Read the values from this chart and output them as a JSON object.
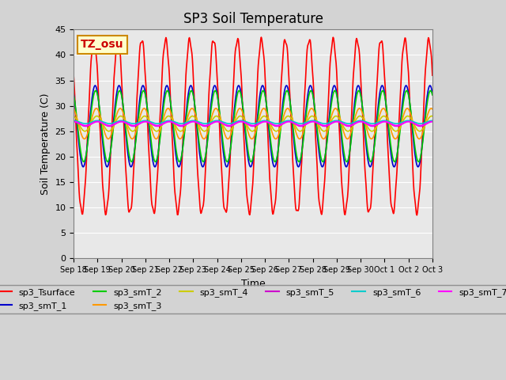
{
  "title": "SP3 Soil Temperature",
  "ylabel": "Soil Temperature (C)",
  "xlabel": "Time",
  "annotation": "TZ_osu",
  "ylim": [
    0,
    45
  ],
  "background_color": "#d3d3d3",
  "plot_bg_color": "#e8e8e8",
  "series_colors": {
    "sp3_Tsurface": "#ff0000",
    "sp3_smT_1": "#0000cc",
    "sp3_smT_2": "#00cc00",
    "sp3_smT_3": "#ff9900",
    "sp3_smT_4": "#cccc00",
    "sp3_smT_5": "#cc00cc",
    "sp3_smT_6": "#00cccc",
    "sp3_smT_7": "#ff00ff"
  },
  "x_tick_labels": [
    "Sep 18",
    "Sep 19",
    "Sep 20",
    "Sep 21",
    "Sep 22",
    "Sep 23",
    "Sep 24",
    "Sep 25",
    "Sep 26",
    "Sep 27",
    "Sep 28",
    "Sep 29",
    "Sep 30",
    "Oct 1",
    "Oct 2",
    "Oct 3"
  ],
  "num_days": 15,
  "num_points": 720,
  "surface_base": 26,
  "surface_amp": 17,
  "surface_phase": 0.6,
  "smT1_base": 26,
  "smT1_amp": 8,
  "smT1_phase": 0.65,
  "smT2_base": 26,
  "smT2_amp": 7,
  "smT2_phase": 0.67,
  "smT3_base": 26.5,
  "smT3_amp": 3,
  "smT3_phase": 0.7,
  "smT4_base": 26.5,
  "smT4_amp": 1.5,
  "smT4_phase": 0.72,
  "smT5_base": 26.5,
  "smT5_amp": 0.5,
  "smT5_phase": 0.75,
  "smT6_base": 26.8,
  "smT6_amp": 0.3,
  "smT6_phase": 0.75,
  "smT7_base": 26.5,
  "smT7_amp": 0.4,
  "smT7_phase": 0.75
}
